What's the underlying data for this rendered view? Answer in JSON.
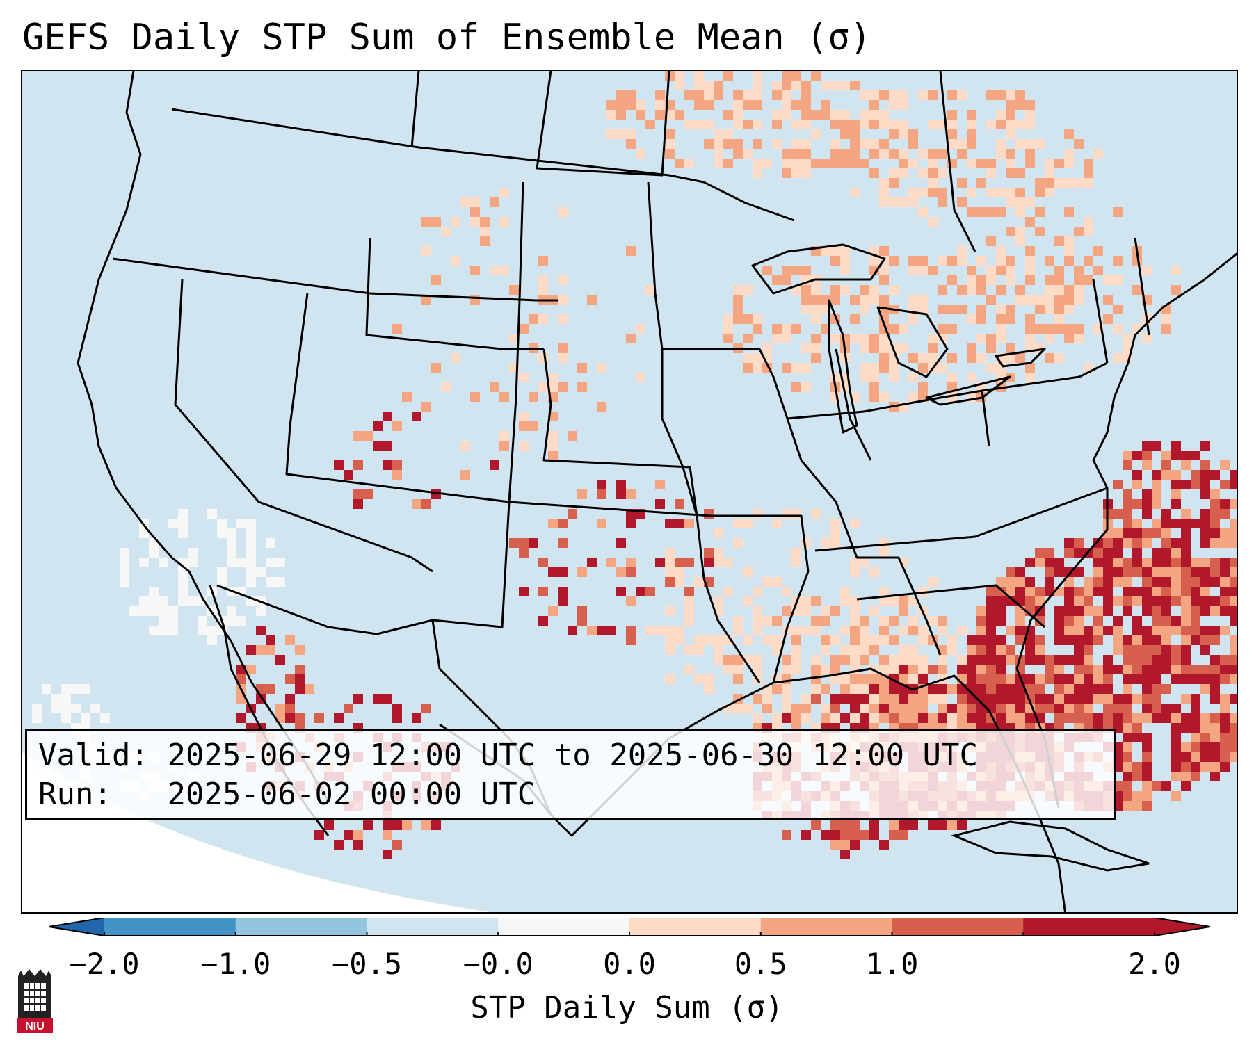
{
  "title": "GEFS Daily STP Sum of Ensemble Mean (σ)",
  "info_box": {
    "valid_label": "Valid:",
    "valid_range": "2025-06-29 12:00 UTC to 2025-06-30 12:00 UTC",
    "run_label": "Run:",
    "run_time": "2025-06-02 00:00 UTC"
  },
  "colorbar": {
    "label": "STP Daily Sum (σ)",
    "ticks": [
      "−2.0",
      "−1.0",
      "−0.5",
      "−0.0",
      "0.0",
      "0.5",
      "1.0",
      "2.0"
    ],
    "colors": [
      "#4393c3",
      "#92c5de",
      "#d1e5f0",
      "#f7f7f7",
      "#fddbc7",
      "#f4a582",
      "#d6604d",
      "#b2182b"
    ],
    "under_color": "#2166ac",
    "over_color": "#b2182b"
  },
  "map": {
    "background_color": "#d1e5f0",
    "region": "Contiguous United States, southern Canada, northern Mexico"
  },
  "logo": {
    "text": "NIU"
  }
}
